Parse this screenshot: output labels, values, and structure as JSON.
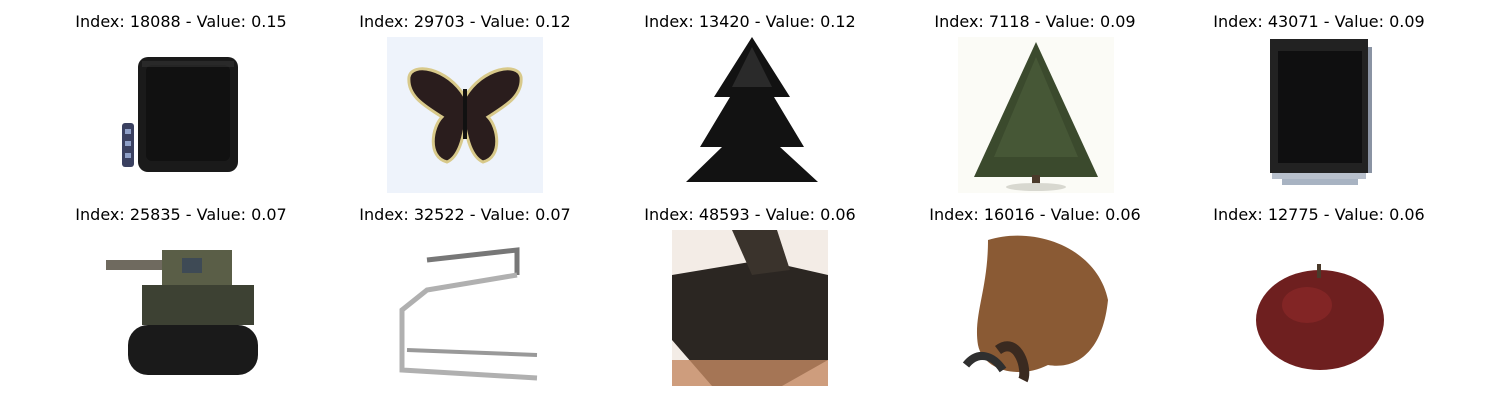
{
  "figure": {
    "panels": [
      {
        "title": "Index: 18088 - Value: 0.15",
        "subject": "television with remote"
      },
      {
        "title": "Index: 29703 - Value: 0.12",
        "subject": "butterfly"
      },
      {
        "title": "Index: 13420 - Value: 0.12",
        "subject": "dark pine tree"
      },
      {
        "title": "Index: 7118 - Value: 0.09",
        "subject": "pine tree"
      },
      {
        "title": "Index: 43071 - Value: 0.09",
        "subject": "flat-screen monitor"
      },
      {
        "title": "Index: 25835 - Value: 0.07",
        "subject": "tank"
      },
      {
        "title": "Index: 32522 - Value: 0.07",
        "subject": "chrome chair"
      },
      {
        "title": "Index: 48593 - Value: 0.06",
        "subject": "tank close-up"
      },
      {
        "title": "Index: 16016 - Value: 0.06",
        "subject": "cat-like animal"
      },
      {
        "title": "Index: 12775 - Value: 0.06",
        "subject": "red apple"
      }
    ]
  }
}
